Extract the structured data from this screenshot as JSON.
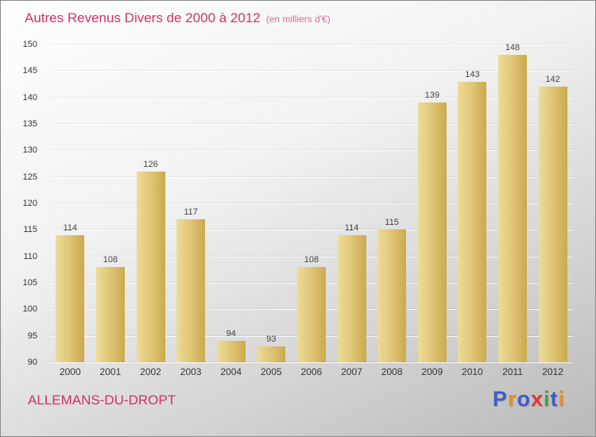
{
  "header": {
    "title": "Autres Revenus Divers de 2000 à 2012",
    "subtitle": "(en milliers d'€)"
  },
  "footer": {
    "place": "ALLEMANS-DU-DROPT"
  },
  "logo": {
    "text": "Proxiti",
    "letters": [
      {
        "char": "P",
        "color": "#3d5fc4"
      },
      {
        "char": "r",
        "color": "#f08a1d"
      },
      {
        "char": "o",
        "color": "#3d5fc4"
      },
      {
        "char": "x",
        "color": "#e03c31"
      },
      {
        "char": "i",
        "color": "#43a047"
      },
      {
        "char": "t",
        "color": "#3d5fc4"
      },
      {
        "char": "i",
        "color": "#f08a1d"
      }
    ]
  },
  "colors": {
    "title": "#cc3366",
    "bar": "#dcc272",
    "grid": "#ffffff"
  },
  "chart_data": {
    "type": "bar",
    "title": "Autres Revenus Divers de 2000 à 2012",
    "subtitle": "(en milliers d'€)",
    "categories": [
      "2000",
      "2001",
      "2002",
      "2003",
      "2004",
      "2005",
      "2006",
      "2007",
      "2008",
      "2009",
      "2010",
      "2011",
      "2012"
    ],
    "values": [
      114,
      108,
      126,
      117,
      94,
      93,
      108,
      114,
      115,
      139,
      143,
      148,
      142
    ],
    "xlabel": "",
    "ylabel": "",
    "ylim": [
      90,
      150
    ],
    "ytick_step": 5,
    "grid": true,
    "legend": "none"
  }
}
